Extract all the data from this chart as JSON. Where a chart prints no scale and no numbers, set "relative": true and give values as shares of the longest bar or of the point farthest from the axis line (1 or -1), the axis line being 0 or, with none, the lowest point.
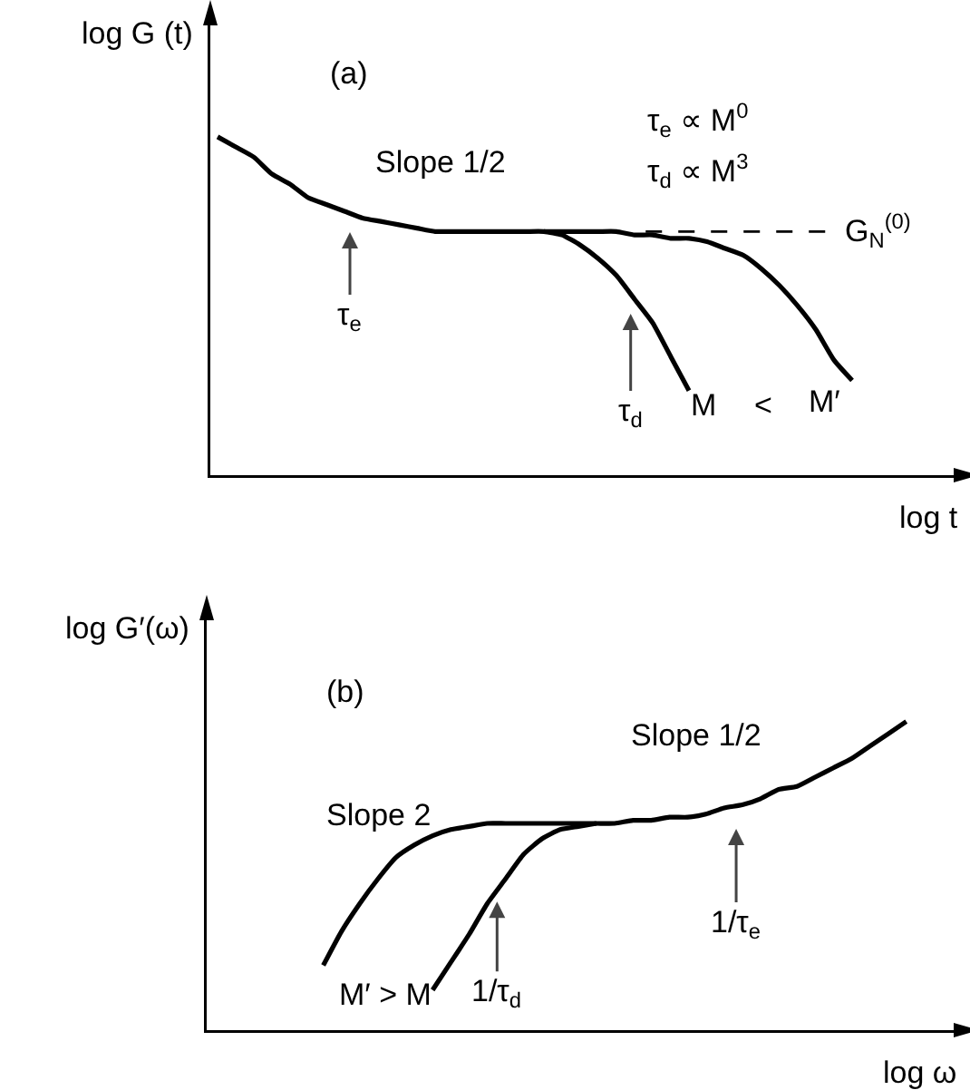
{
  "chart_data": [
    {
      "type": "line",
      "ylabel": "log G (t)",
      "xlabel": "log t",
      "relative": true,
      "categories": [
        null,
        null,
        null,
        null,
        null,
        null,
        null,
        null,
        null,
        null,
        null,
        null,
        null,
        null,
        null,
        null,
        null,
        null,
        null,
        null,
        null,
        null,
        null,
        null,
        null,
        null,
        null,
        null,
        null,
        null,
        null,
        null,
        null,
        null,
        null,
        null,
        null,
        null,
        null,
        null,
        null
      ],
      "series": [
        {
          "color": "#000000",
          "values": [
            1.0,
            0.97,
            0.94,
            0.89,
            0.86,
            0.82,
            0.8,
            0.78,
            0.76,
            0.75,
            0.74,
            0.73,
            0.72,
            0.72,
            0.72,
            0.72,
            0.72,
            0.72,
            0.72,
            0.71,
            0.68,
            0.64,
            0.59,
            0.52,
            0.45,
            0.35,
            0.25,
            null,
            null,
            null,
            null,
            null,
            null,
            null,
            null,
            null,
            null,
            null,
            null,
            null,
            null
          ]
        },
        {
          "color": "#000000",
          "values": [
            null,
            null,
            null,
            null,
            null,
            null,
            null,
            null,
            null,
            null,
            null,
            null,
            null,
            null,
            null,
            null,
            null,
            null,
            0.72,
            0.72,
            0.72,
            0.72,
            0.72,
            0.71,
            0.71,
            0.7,
            0.7,
            0.69,
            0.67,
            0.65,
            0.61,
            0.56,
            0.5,
            0.43,
            0.34,
            0.28,
            null,
            null,
            null,
            null,
            null
          ]
        }
      ],
      "ref_lines": [
        {
          "axis": "y",
          "value": 0.72,
          "label": "G$_{N}$$^{(0)}$",
          "line_style": "dashed"
        }
      ],
      "annotations": [
        "(a)",
        "Slope 1/2",
        "τ$_{e}$ ∝ M$^{0}$",
        "τ$_{d}$ ∝ M$^{3}$",
        "τ$_{e}$",
        "τ$_{d}$",
        "M",
        "<",
        "M′"
      ]
    },
    {
      "type": "line",
      "ylabel": "log G′(ω)",
      "xlabel": "log ω",
      "relative": true,
      "categories": [
        null,
        null,
        null,
        null,
        null,
        null,
        null,
        null,
        null,
        null,
        null,
        null,
        null,
        null,
        null,
        null,
        null,
        null,
        null,
        null,
        null,
        null,
        null,
        null,
        null,
        null,
        null,
        null,
        null,
        null,
        null,
        null,
        null,
        null,
        null,
        null,
        null,
        null,
        null,
        null,
        null
      ],
      "series": [
        {
          "color": "#000000",
          "values": [
            null,
            null,
            null,
            null,
            null,
            null,
            0.21,
            0.32,
            0.41,
            0.49,
            0.56,
            0.6,
            0.63,
            0.65,
            0.66,
            0.67,
            0.67,
            0.67,
            0.67,
            0.67,
            0.67,
            0.67,
            0.67,
            0.68,
            0.68,
            0.69,
            0.69,
            0.7,
            0.72,
            0.73,
            0.75,
            0.78,
            0.79,
            0.82,
            0.85,
            0.88,
            0.92,
            0.96,
            1.0,
            null,
            null
          ]
        },
        {
          "color": "#000000",
          "values": [
            null,
            null,
            null,
            null,
            null,
            null,
            null,
            null,
            null,
            null,
            null,
            null,
            0.13,
            0.22,
            0.31,
            0.41,
            0.49,
            0.57,
            0.62,
            0.65,
            0.66,
            0.67,
            null,
            null,
            null,
            null,
            null,
            null,
            null,
            null,
            null,
            null,
            null,
            null,
            null,
            null,
            null,
            null,
            null,
            null,
            null
          ]
        }
      ],
      "annotations": [
        "(b)",
        "Slope 2",
        "Slope 1/2",
        "M′ > M",
        "1/τ$_{d}$",
        "1/τ$_{e}$"
      ]
    }
  ]
}
